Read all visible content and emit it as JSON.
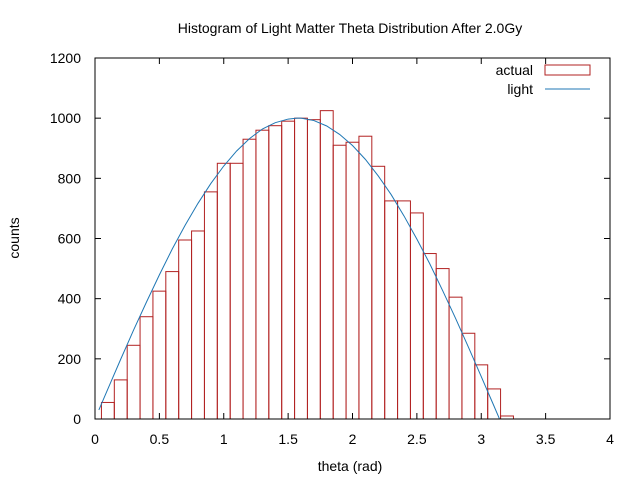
{
  "chart_data": {
    "type": "bar",
    "title": "Histogram of Light Matter Theta Distribution After 2.0Gy",
    "xlabel": "theta (rad)",
    "ylabel": "counts",
    "xlim": [
      0,
      4
    ],
    "ylim": [
      0,
      1200
    ],
    "xticks": [
      0,
      0.5,
      1,
      1.5,
      2,
      2.5,
      3,
      3.5,
      4
    ],
    "yticks": [
      0,
      200,
      400,
      600,
      800,
      1000,
      1200
    ],
    "xtick_labels": [
      "0",
      "0.5",
      "1",
      "1.5",
      "2",
      "2.5",
      "3",
      "3.5",
      "4"
    ],
    "ytick_labels": [
      "0",
      "200",
      "400",
      "600",
      "800",
      "1000",
      "1200"
    ],
    "grid": false,
    "legend_position": "top-right",
    "bin_width": 0.1,
    "series": [
      {
        "name": "actual",
        "kind": "histogram",
        "color": "#b22222",
        "bin_start": [
          0.05,
          0.15,
          0.25,
          0.35,
          0.45,
          0.55,
          0.65,
          0.75,
          0.85,
          0.95,
          1.05,
          1.15,
          1.25,
          1.35,
          1.45,
          1.55,
          1.65,
          1.75,
          1.85,
          1.95,
          2.05,
          2.15,
          2.25,
          2.35,
          2.45,
          2.55,
          2.65,
          2.75,
          2.85,
          2.95,
          3.05,
          3.15
        ],
        "values": [
          55,
          130,
          245,
          340,
          425,
          490,
          595,
          625,
          755,
          850,
          850,
          930,
          960,
          975,
          990,
          1000,
          995,
          1025,
          910,
          920,
          940,
          840,
          725,
          725,
          685,
          550,
          500,
          405,
          285,
          180,
          100,
          10
        ]
      },
      {
        "name": "light",
        "kind": "line",
        "color": "#1f77b4",
        "function": "1000*sin(theta)",
        "x": [
          0.03,
          0.1,
          0.2,
          0.3,
          0.4,
          0.5,
          0.6,
          0.7,
          0.8,
          0.9,
          1.0,
          1.1,
          1.2,
          1.3,
          1.4,
          1.5,
          1.57,
          1.6,
          1.7,
          1.8,
          1.9,
          2.0,
          2.1,
          2.2,
          2.3,
          2.4,
          2.5,
          2.6,
          2.7,
          2.8,
          2.9,
          3.0,
          3.1,
          3.14
        ],
        "values": [
          30,
          100,
          199,
          296,
          389,
          479,
          565,
          644,
          717,
          783,
          841,
          891,
          932,
          964,
          985,
          997,
          1000,
          1000,
          992,
          974,
          946,
          909,
          863,
          808,
          746,
          675,
          598,
          516,
          427,
          335,
          239,
          141,
          42,
          2
        ]
      }
    ]
  }
}
